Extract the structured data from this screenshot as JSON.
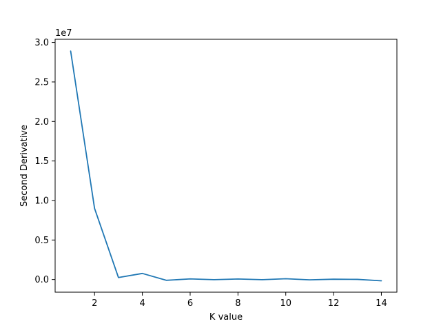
{
  "chart_data": {
    "type": "line",
    "title": "",
    "xlabel": "K value",
    "ylabel": "Second Derivative",
    "y_offset_label": "1e7",
    "x": [
      1,
      2,
      3,
      4,
      5,
      6,
      7,
      8,
      9,
      10,
      11,
      12,
      13,
      14
    ],
    "series": [
      {
        "values": [
          28900000,
          9000000,
          250000,
          770000,
          -100000,
          80000,
          -20000,
          70000,
          -20000,
          100000,
          -40000,
          40000,
          20000,
          -160000
        ]
      }
    ],
    "xlim": [
      0.35,
      14.65
    ],
    "ylim": [
      -1600000,
      30400000
    ],
    "xticks": [
      2,
      4,
      6,
      8,
      10,
      12,
      14
    ],
    "xtick_labels": [
      "2",
      "4",
      "6",
      "8",
      "10",
      "12",
      "14"
    ],
    "yticks": [
      0,
      5000000,
      10000000,
      15000000,
      20000000,
      25000000,
      30000000
    ],
    "ytick_labels": [
      "0.0",
      "0.5",
      "1.0",
      "1.5",
      "2.0",
      "2.5",
      "3.0"
    ],
    "grid": false,
    "line_color": "#1f77b4"
  }
}
